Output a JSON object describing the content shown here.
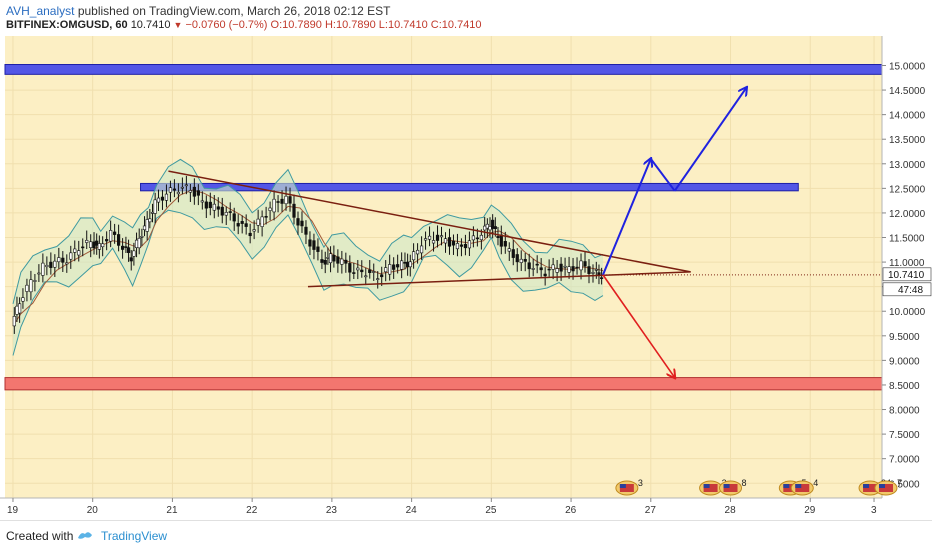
{
  "header": {
    "author": "AVH_analyst",
    "published_text": "published on TradingView.com, March 26, 2018 02:12 EST",
    "symbol": "BITFINEX:OMGUSD, 60",
    "last": "10.7410",
    "change": "−0.0760 (−0.7%)",
    "open": "O:10.7890",
    "high": "H:10.7890",
    "low": "L:10.7410",
    "close": "C:10.7410"
  },
  "footer": {
    "created_with": "Created with",
    "brand": "TradingView"
  },
  "chart_data": {
    "type": "candlestick",
    "title": "",
    "x_ticks": [
      "19",
      "20",
      "21",
      "22",
      "23",
      "24",
      "25",
      "26",
      "27",
      "28",
      "29",
      "3"
    ],
    "y_ticks": [
      "15.0000",
      "14.5000",
      "14.0000",
      "13.5000",
      "13.0000",
      "12.5000",
      "12.0000",
      "11.5000",
      "11.0000",
      "10.5000",
      "10.0000",
      "9.5000",
      "9.0000",
      "8.5000",
      "8.0000",
      "7.5000",
      "7.0000",
      "6.5000"
    ],
    "ylim": [
      6.2,
      15.6
    ],
    "last_price_label": "10.7410",
    "countdown_label": "47:48",
    "close_path": [
      [
        19.0,
        9.7
      ],
      [
        19.1,
        10.2
      ],
      [
        19.25,
        10.6
      ],
      [
        19.4,
        10.9
      ],
      [
        19.55,
        11.0
      ],
      [
        19.7,
        11.05
      ],
      [
        19.85,
        11.3
      ],
      [
        20.0,
        11.4
      ],
      [
        20.1,
        11.3
      ],
      [
        20.25,
        11.6
      ],
      [
        20.4,
        11.3
      ],
      [
        20.5,
        11.1
      ],
      [
        20.6,
        11.5
      ],
      [
        20.7,
        11.8
      ],
      [
        20.8,
        12.2
      ],
      [
        20.95,
        12.4
      ],
      [
        21.1,
        12.5
      ],
      [
        21.25,
        12.5
      ],
      [
        21.4,
        12.2
      ],
      [
        21.55,
        12.1
      ],
      [
        21.7,
        12.0
      ],
      [
        21.85,
        11.8
      ],
      [
        22.0,
        11.6
      ],
      [
        22.15,
        11.9
      ],
      [
        22.3,
        12.2
      ],
      [
        22.45,
        12.3
      ],
      [
        22.6,
        11.8
      ],
      [
        22.75,
        11.4
      ],
      [
        22.9,
        11.0
      ],
      [
        23.0,
        11.1
      ],
      [
        23.15,
        11.0
      ],
      [
        23.3,
        10.8
      ],
      [
        23.45,
        10.8
      ],
      [
        23.6,
        10.7
      ],
      [
        23.75,
        10.9
      ],
      [
        23.9,
        10.95
      ],
      [
        24.0,
        11.0
      ],
      [
        24.15,
        11.4
      ],
      [
        24.3,
        11.5
      ],
      [
        24.45,
        11.45
      ],
      [
        24.6,
        11.3
      ],
      [
        24.75,
        11.4
      ],
      [
        24.9,
        11.6
      ],
      [
        25.0,
        11.8
      ],
      [
        25.1,
        11.5
      ],
      [
        25.25,
        11.2
      ],
      [
        25.4,
        11.0
      ],
      [
        25.55,
        10.9
      ],
      [
        25.7,
        10.8
      ],
      [
        25.85,
        10.9
      ],
      [
        26.0,
        10.85
      ],
      [
        26.15,
        10.95
      ],
      [
        26.3,
        10.79
      ],
      [
        26.4,
        10.741
      ]
    ],
    "resistance_zones": [
      [
        14.82,
        15.02
      ],
      [
        12.45,
        12.6
      ]
    ],
    "support_zones": [
      [
        8.4,
        8.65
      ]
    ],
    "triangle_upper": [
      [
        20.95,
        12.85
      ],
      [
        27.5,
        10.8
      ]
    ],
    "triangle_lower": [
      [
        22.7,
        10.5
      ],
      [
        27.5,
        10.8
      ]
    ],
    "projection_up": [
      [
        26.4,
        10.74
      ],
      [
        27.0,
        13.1
      ],
      [
        27.3,
        12.45
      ],
      [
        28.2,
        14.55
      ]
    ],
    "projection_down": [
      [
        26.4,
        10.74
      ],
      [
        27.3,
        8.65
      ]
    ],
    "event_markers": [
      {
        "x": 26.7,
        "label": "3"
      },
      {
        "x": 27.75,
        "label": "2"
      },
      {
        "x": 28.0,
        "label": "8"
      },
      {
        "x": 28.75,
        "label": "5"
      },
      {
        "x": 28.9,
        "label": "4"
      },
      {
        "x": 29.75,
        "label": "34"
      },
      {
        "x": 29.95,
        "label": "7"
      }
    ]
  }
}
